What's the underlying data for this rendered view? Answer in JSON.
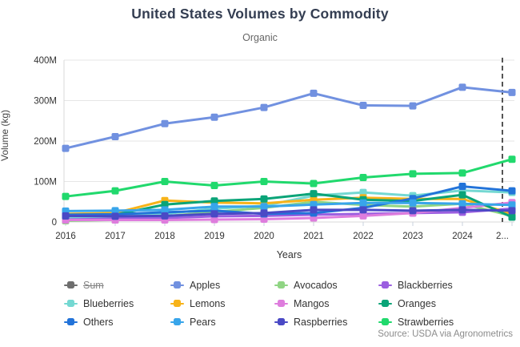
{
  "header": {
    "title": "United States Volumes by Commodity",
    "subtitle": "Organic"
  },
  "footer": {
    "source": "Source: USDA via Agronometrics"
  },
  "chart_data": {
    "type": "line",
    "title": "United States Volumes by Commodity",
    "subtitle": "Organic",
    "xlabel": "Years",
    "ylabel": "Volume (kg)",
    "legend_position": "bottom",
    "grid": true,
    "unit": "million kg",
    "unit_suffix": "M",
    "ylim_m": [
      0,
      400
    ],
    "ytick_values_m": [
      0,
      100,
      200,
      300,
      400
    ],
    "ytick_labels": [
      "0",
      "100M",
      "200M",
      "300M",
      "400M"
    ],
    "years": [
      2016,
      2017,
      2018,
      2019,
      2020,
      2021,
      2022,
      2023,
      2024,
      2025
    ],
    "x_tick_labels": [
      "2016",
      "2017",
      "2018",
      "2019",
      "2020",
      "2021",
      "2022",
      "2023",
      "2024",
      "2..."
    ],
    "plotline": {
      "style": "vertical-dashed",
      "color": "#555555",
      "at_x_label": "2...",
      "note": "dashed marker near final partial-year point"
    },
    "series": [
      {
        "name": "Sum",
        "color": "#6e6e6e",
        "visible": false,
        "values_m": null
      },
      {
        "name": "Apples",
        "color": "#7191e0",
        "visible": true,
        "values_m": [
          182,
          211,
          243,
          259,
          283,
          318,
          288,
          287,
          333,
          320
        ]
      },
      {
        "name": "Avocados",
        "color": "#90d584",
        "visible": true,
        "values_m": [
          3,
          5,
          14,
          25,
          35,
          50,
          42,
          38,
          45,
          15
        ]
      },
      {
        "name": "Blackberries",
        "color": "#9b5fe0",
        "visible": true,
        "values_m": [
          10,
          10,
          10,
          14,
          15,
          18,
          20,
          22,
          24,
          33
        ]
      },
      {
        "name": "Blueberries",
        "color": "#74d8d2",
        "visible": true,
        "values_m": [
          12,
          14,
          20,
          33,
          40,
          65,
          73,
          65,
          78,
          73
        ]
      },
      {
        "name": "Lemons",
        "color": "#f7b319",
        "visible": true,
        "values_m": [
          20,
          22,
          53,
          48,
          46,
          55,
          60,
          57,
          57,
          20
        ]
      },
      {
        "name": "Mangos",
        "color": "#de7ddd",
        "visible": true,
        "values_m": [
          5,
          5,
          5,
          6,
          7,
          10,
          15,
          22,
          35,
          48
        ]
      },
      {
        "name": "Oranges",
        "color": "#0aa478",
        "visible": true,
        "values_m": [
          15,
          18,
          43,
          52,
          57,
          70,
          55,
          52,
          67,
          12
        ]
      },
      {
        "name": "Others",
        "color": "#2273d9",
        "visible": true,
        "values_m": [
          18,
          19,
          24,
          28,
          20,
          22,
          35,
          58,
          88,
          77
        ]
      },
      {
        "name": "Pears",
        "color": "#38a5ea",
        "visible": true,
        "values_m": [
          27,
          28,
          30,
          38,
          38,
          43,
          47,
          47,
          45,
          42
        ]
      },
      {
        "name": "Raspberries",
        "color": "#4a49c5",
        "visible": true,
        "values_m": [
          15,
          14,
          15,
          20,
          22,
          30,
          30,
          28,
          30,
          28
        ]
      },
      {
        "name": "Strawberries",
        "color": "#21d96d",
        "visible": true,
        "values_m": [
          63,
          77,
          100,
          90,
          100,
          95,
          110,
          119,
          121,
          155
        ]
      }
    ]
  }
}
